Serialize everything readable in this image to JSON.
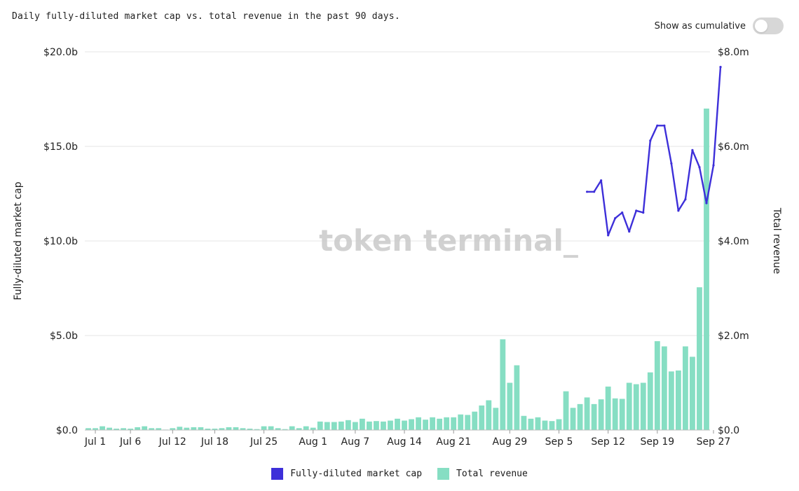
{
  "header": {
    "subtitle": "Daily fully-diluted market cap vs. total revenue in the past 90 days.",
    "toggle_label": "Show as cumulative",
    "toggle_on": false
  },
  "watermark": "token terminal_",
  "colors": {
    "market_cap": "#3d2fd9",
    "revenue": "#86dec3",
    "grid": "#e6e6e6"
  },
  "chart_data": {
    "type": "bar",
    "x_ticks": [
      "Jul 1",
      "Jul 6",
      "Jul 12",
      "Jul 18",
      "Jul 25",
      "Aug 1",
      "Aug 7",
      "Aug 14",
      "Aug 21",
      "Aug 29",
      "Sep 5",
      "Sep 12",
      "Sep 19",
      "Sep 27"
    ],
    "x_tick_index": [
      1,
      6,
      12,
      18,
      25,
      32,
      38,
      45,
      52,
      60,
      67,
      74,
      81,
      89
    ],
    "y_left": {
      "label": "Fully-diluted market cap",
      "ticks": [
        "$0.0",
        "$5.0b",
        "$10.0b",
        "$15.0b",
        "$20.0b"
      ],
      "range": [
        0,
        20
      ]
    },
    "y_right": {
      "label": "Total revenue",
      "ticks": [
        "$0.0",
        "$2.0m",
        "$4.0m",
        "$6.0m",
        "$8.0m"
      ],
      "range": [
        0,
        8
      ]
    },
    "series": [
      {
        "name": "Total revenue",
        "type": "bar",
        "axis": "right",
        "unit": "$m",
        "values": [
          0.04,
          0.04,
          0.08,
          0.05,
          0.03,
          0.04,
          0.03,
          0.06,
          0.08,
          0.04,
          0.04,
          0.01,
          0.04,
          0.07,
          0.05,
          0.06,
          0.06,
          0.03,
          0.03,
          0.04,
          0.06,
          0.06,
          0.04,
          0.03,
          0.02,
          0.08,
          0.08,
          0.04,
          0.02,
          0.08,
          0.04,
          0.08,
          0.05,
          0.18,
          0.17,
          0.17,
          0.18,
          0.21,
          0.17,
          0.24,
          0.18,
          0.19,
          0.18,
          0.2,
          0.24,
          0.2,
          0.23,
          0.27,
          0.22,
          0.27,
          0.24,
          0.27,
          0.27,
          0.33,
          0.32,
          0.39,
          0.52,
          0.63,
          0.47,
          1.92,
          1.0,
          1.37,
          0.3,
          0.24,
          0.27,
          0.2,
          0.19,
          0.23,
          0.82,
          0.47,
          0.55,
          0.69,
          0.55,
          0.65,
          0.92,
          0.67,
          0.66,
          1.0,
          0.97,
          1.0,
          1.22,
          1.88,
          1.77,
          1.24,
          1.26,
          1.77,
          1.55,
          3.02,
          6.8
        ]
      },
      {
        "name": "Fully-diluted market cap",
        "type": "line",
        "axis": "left",
        "unit": "$b",
        "start_index": 71,
        "values": [
          12.6,
          12.6,
          13.2,
          10.3,
          11.2,
          11.5,
          10.5,
          11.6,
          11.5,
          15.3,
          16.1,
          16.1,
          14.1,
          11.6,
          12.2,
          14.8,
          13.9,
          12.0,
          14.0,
          19.2
        ]
      }
    ]
  },
  "legend": [
    {
      "label": "Fully-diluted market cap",
      "color": "#3d2fd9"
    },
    {
      "label": "Total revenue",
      "color": "#86dec3"
    }
  ]
}
